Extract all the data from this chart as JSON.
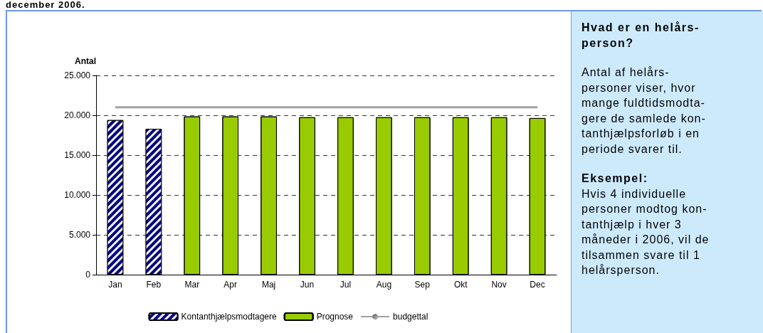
{
  "chart_data": {
    "type": "bar",
    "ylabel": "Antal",
    "categories": [
      "Jan",
      "Feb",
      "Mar",
      "Apr",
      "Maj",
      "Jun",
      "Jul",
      "Aug",
      "Sep",
      "Okt",
      "Nov",
      "Dec"
    ],
    "series": [
      {
        "name": "Kontanthjælpsmodtagere",
        "color": "#000080",
        "values": [
          19400,
          18300,
          null,
          null,
          null,
          null,
          null,
          null,
          null,
          null,
          null,
          null
        ]
      },
      {
        "name": "Prognose",
        "color": "#99cc00",
        "values": [
          null,
          null,
          19850,
          19850,
          19850,
          19750,
          19750,
          19750,
          19750,
          19750,
          19750,
          19650
        ]
      },
      {
        "name": "budgettal",
        "type": "line",
        "color": "#a0a0a0",
        "values": [
          21000,
          21000,
          21000,
          21000,
          21000,
          21000,
          21000,
          21000,
          21000,
          21000,
          21000,
          21000
        ]
      }
    ],
    "ylim": [
      0,
      25000
    ],
    "yticks": [
      {
        "value": 0,
        "label": "0"
      },
      {
        "value": 5000,
        "label": "5.000"
      },
      {
        "value": 10000,
        "label": "10.000"
      },
      {
        "value": 15000,
        "label": "15.000"
      },
      {
        "value": 20000,
        "label": "20.000"
      },
      {
        "value": 25000,
        "label": "25.000"
      }
    ],
    "grid": "y",
    "legend": "bottom",
    "marker": "none",
    "annotations": [
      "december 2006.",
      "Hvad er en helårs-\nperson?",
      "Antal af helårs-\npersoner viser, hvor\nmange fuldtidsmodta-\ngere de samlede kon-\ntanthjælpsforløb i en\nperiode svarer til.",
      "Eksempel:",
      "Hvis 4 individuelle\npersoner modtog kon-\ntanthjælp i hver 3\nmåneder i 2006, vil de\ntilsammen svare til 1\nhelårsperson."
    ]
  }
}
